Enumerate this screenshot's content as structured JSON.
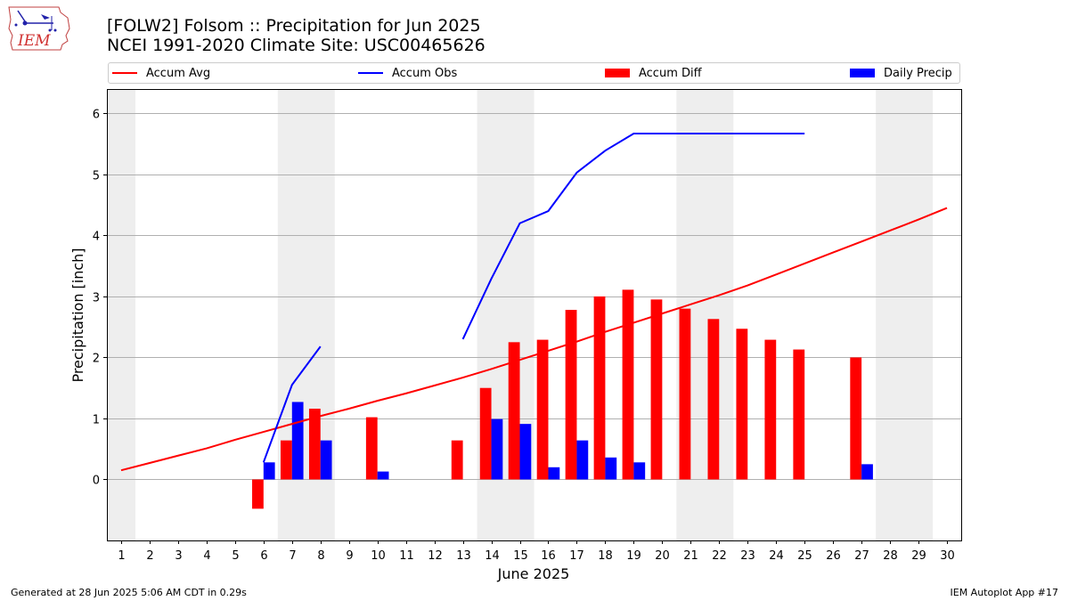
{
  "header": {
    "title_line1": "[FOLW2] Folsom :: Precipitation for Jun 2025",
    "title_line2": "NCEI 1991-2020 Climate Site: USC00465626",
    "logo_text": "IEM"
  },
  "legend": {
    "items": [
      {
        "label": "Accum Avg",
        "kind": "line",
        "color": "#ff0000"
      },
      {
        "label": "Accum Obs",
        "kind": "line",
        "color": "#0000ff"
      },
      {
        "label": "Accum Diff",
        "kind": "bar",
        "color": "#ff0000"
      },
      {
        "label": "Daily Precip",
        "kind": "bar",
        "color": "#0000ff"
      }
    ],
    "placement": "top"
  },
  "footer": {
    "left": "Generated at 28 Jun 2025 5:06 AM CDT in 0.29s",
    "right": "IEM Autoplot App #17"
  },
  "chart_data": {
    "type": "bar",
    "xlabel": "June 2025",
    "ylabel": "Precipitation [inch]",
    "x": [
      1,
      2,
      3,
      4,
      5,
      6,
      7,
      8,
      9,
      10,
      11,
      12,
      13,
      14,
      15,
      16,
      17,
      18,
      19,
      20,
      21,
      22,
      23,
      24,
      25,
      26,
      27,
      28,
      29,
      30
    ],
    "xlim": [
      0.5,
      30.5
    ],
    "ylim": [
      -1.0,
      6.4
    ],
    "yticks": [
      0,
      1,
      2,
      3,
      4,
      5,
      6
    ],
    "grid": "horizontal",
    "weekend_shading": [
      [
        0.5,
        1.5
      ],
      [
        6.5,
        8.5
      ],
      [
        13.5,
        15.5
      ],
      [
        20.5,
        22.5
      ],
      [
        27.5,
        29.5
      ]
    ],
    "shading_color": "#eeeeee",
    "series": [
      {
        "name": "Accum Avg",
        "kind": "line",
        "color": "#ff0000",
        "x": [
          1,
          2,
          3,
          4,
          5,
          6,
          7,
          8,
          9,
          10,
          11,
          12,
          13,
          14,
          15,
          16,
          17,
          18,
          19,
          20,
          21,
          22,
          23,
          24,
          25,
          26,
          27,
          28,
          29,
          30
        ],
        "values": [
          0.15,
          0.27,
          0.39,
          0.51,
          0.65,
          0.78,
          0.91,
          1.04,
          1.16,
          1.29,
          1.41,
          1.54,
          1.67,
          1.81,
          1.96,
          2.11,
          2.26,
          2.42,
          2.57,
          2.72,
          2.87,
          3.02,
          3.18,
          3.36,
          3.54,
          3.72,
          3.9,
          4.08,
          4.26,
          4.45
        ]
      },
      {
        "name": "Accum Obs",
        "kind": "line",
        "color": "#0000ff",
        "segments": [
          {
            "x": [
              6,
              7,
              8
            ],
            "values": [
              0.28,
              1.55,
              2.18
            ]
          },
          {
            "x": [
              13,
              14,
              15,
              16,
              17,
              18,
              19,
              20,
              21,
              22,
              23,
              24,
              25
            ],
            "values": [
              2.3,
              3.29,
              4.2,
              4.4,
              5.03,
              5.39,
              5.67,
              5.67,
              5.67,
              5.67,
              5.67,
              5.67,
              5.67
            ]
          }
        ]
      },
      {
        "name": "Accum Diff",
        "kind": "bar",
        "color": "#ff0000",
        "x": [
          6,
          7,
          8,
          10,
          13,
          14,
          15,
          16,
          17,
          18,
          19,
          20,
          21,
          22,
          23,
          24,
          25,
          27
        ],
        "values": [
          -0.48,
          0.64,
          1.16,
          1.02,
          0.64,
          1.5,
          2.25,
          2.29,
          2.78,
          3.0,
          3.11,
          2.95,
          2.8,
          2.63,
          2.47,
          2.29,
          2.13,
          2.0
        ]
      },
      {
        "name": "Daily Precip",
        "kind": "bar",
        "color": "#0000ff",
        "x": [
          6,
          7,
          8,
          10,
          14,
          15,
          16,
          17,
          18,
          19,
          27
        ],
        "values": [
          0.28,
          1.27,
          0.64,
          0.13,
          0.99,
          0.91,
          0.2,
          0.64,
          0.36,
          0.28,
          0.25
        ]
      }
    ]
  }
}
